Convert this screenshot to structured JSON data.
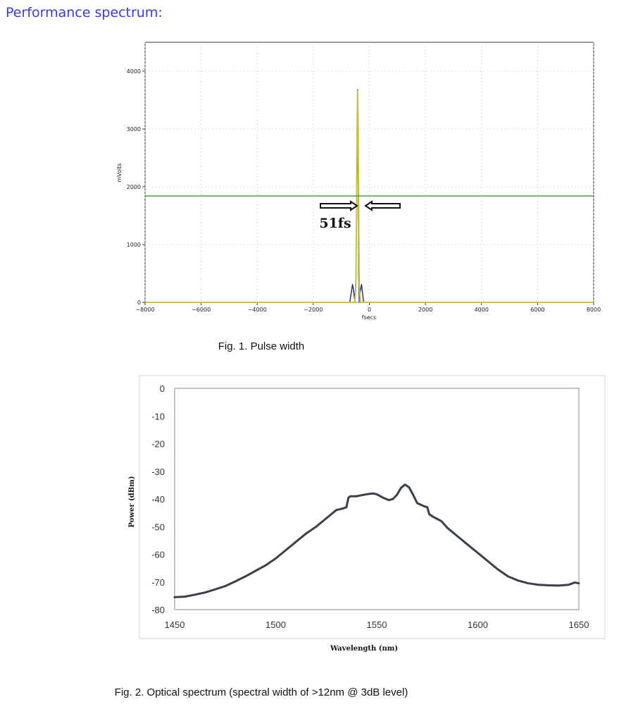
{
  "heading": "Performance spectrum:",
  "chart_data": [
    {
      "type": "line",
      "caption": "Fig. 1. Pulse width",
      "xlabel": "fsecs",
      "ylabel": "mVolts",
      "xlim": [
        -8000,
        8000
      ],
      "ylim": [
        0,
        4500
      ],
      "x_ticks": [
        "−8000",
        "−6000",
        "−4000",
        "−2000",
        "0",
        "2000",
        "4000",
        "6000",
        "8000"
      ],
      "y_ticks": [
        "0",
        "1000",
        "2000",
        "3000",
        "4000"
      ],
      "x_tick_values": [
        -8000,
        -6000,
        -4000,
        -2000,
        0,
        2000,
        4000,
        6000,
        8000
      ],
      "y_tick_values": [
        0,
        1000,
        2000,
        3000,
        4000
      ],
      "grid": true,
      "annotation": "51fs",
      "series": [
        {
          "color": "#1f2a7a",
          "x": [
            -8000,
            -700,
            -650,
            -600,
            -560,
            -520,
            -480,
            -440,
            -420,
            -400,
            -380,
            -360,
            -320,
            -280,
            -240,
            -200,
            -160,
            -140,
            8000
          ],
          "y": [
            0,
            0,
            150,
            310,
            200,
            20,
            400,
            2200,
            3680,
            2200,
            400,
            20,
            200,
            310,
            150,
            0,
            0,
            0,
            0
          ]
        },
        {
          "color": "#c9c04a",
          "x": [
            -8000,
            -520,
            -480,
            -460,
            -440,
            -420,
            -400,
            -380,
            -360,
            -320,
            8000
          ],
          "y": [
            0,
            0,
            300,
            1400,
            3000,
            3660,
            3000,
            1400,
            300,
            0,
            0
          ]
        },
        {
          "color": "#3a9a3a",
          "x": [
            -8000,
            8000
          ],
          "y": [
            1840,
            1840
          ]
        }
      ]
    },
    {
      "type": "line",
      "caption": "Fig. 2. Optical spectrum (spectral width of >12nm @ 3dB level)",
      "xlabel": "Wavelength (nm)",
      "ylabel": "Power (dBm)",
      "xlim": [
        1450,
        1650
      ],
      "ylim": [
        -80,
        0
      ],
      "x_ticks": [
        "1450",
        "1500",
        "1550",
        "1600",
        "1650"
      ],
      "y_ticks": [
        "0",
        "-10",
        "-20",
        "-30",
        "-40",
        "-50",
        "-60",
        "-70",
        "-80"
      ],
      "x_tick_values": [
        1450,
        1500,
        1550,
        1600,
        1650
      ],
      "y_tick_values": [
        0,
        -10,
        -20,
        -30,
        -40,
        -50,
        -60,
        -70,
        -80
      ],
      "grid": false,
      "series": [
        {
          "color": "#3a3f4a",
          "x": [
            1450,
            1455,
            1460,
            1465,
            1470,
            1475,
            1480,
            1485,
            1490,
            1495,
            1500,
            1505,
            1510,
            1515,
            1520,
            1525,
            1530,
            1533,
            1535,
            1536,
            1537,
            1540,
            1545,
            1548,
            1550,
            1553,
            1556,
            1558,
            1560,
            1562,
            1564,
            1566,
            1568,
            1570,
            1573,
            1575,
            1576,
            1578,
            1582,
            1585,
            1590,
            1595,
            1600,
            1605,
            1610,
            1615,
            1620,
            1625,
            1630,
            1635,
            1640,
            1645,
            1648,
            1650
          ],
          "y": [
            -75.5,
            -75.3,
            -74.6,
            -73.8,
            -72.7,
            -71.5,
            -69.8,
            -68.0,
            -66.0,
            -64.0,
            -61.5,
            -58.5,
            -55.5,
            -52.5,
            -50.0,
            -47.0,
            -44.0,
            -43.5,
            -43.0,
            -39.5,
            -39.0,
            -39.0,
            -38.3,
            -38.0,
            -38.3,
            -39.5,
            -40.4,
            -40.0,
            -38.5,
            -36.0,
            -34.8,
            -35.8,
            -38.5,
            -41.5,
            -42.5,
            -43.0,
            -45.5,
            -46.5,
            -48.0,
            -50.5,
            -53.5,
            -56.5,
            -59.5,
            -62.5,
            -65.5,
            -68.0,
            -69.5,
            -70.5,
            -71.0,
            -71.2,
            -71.3,
            -71.0,
            -70.2,
            -70.5
          ]
        }
      ]
    }
  ]
}
